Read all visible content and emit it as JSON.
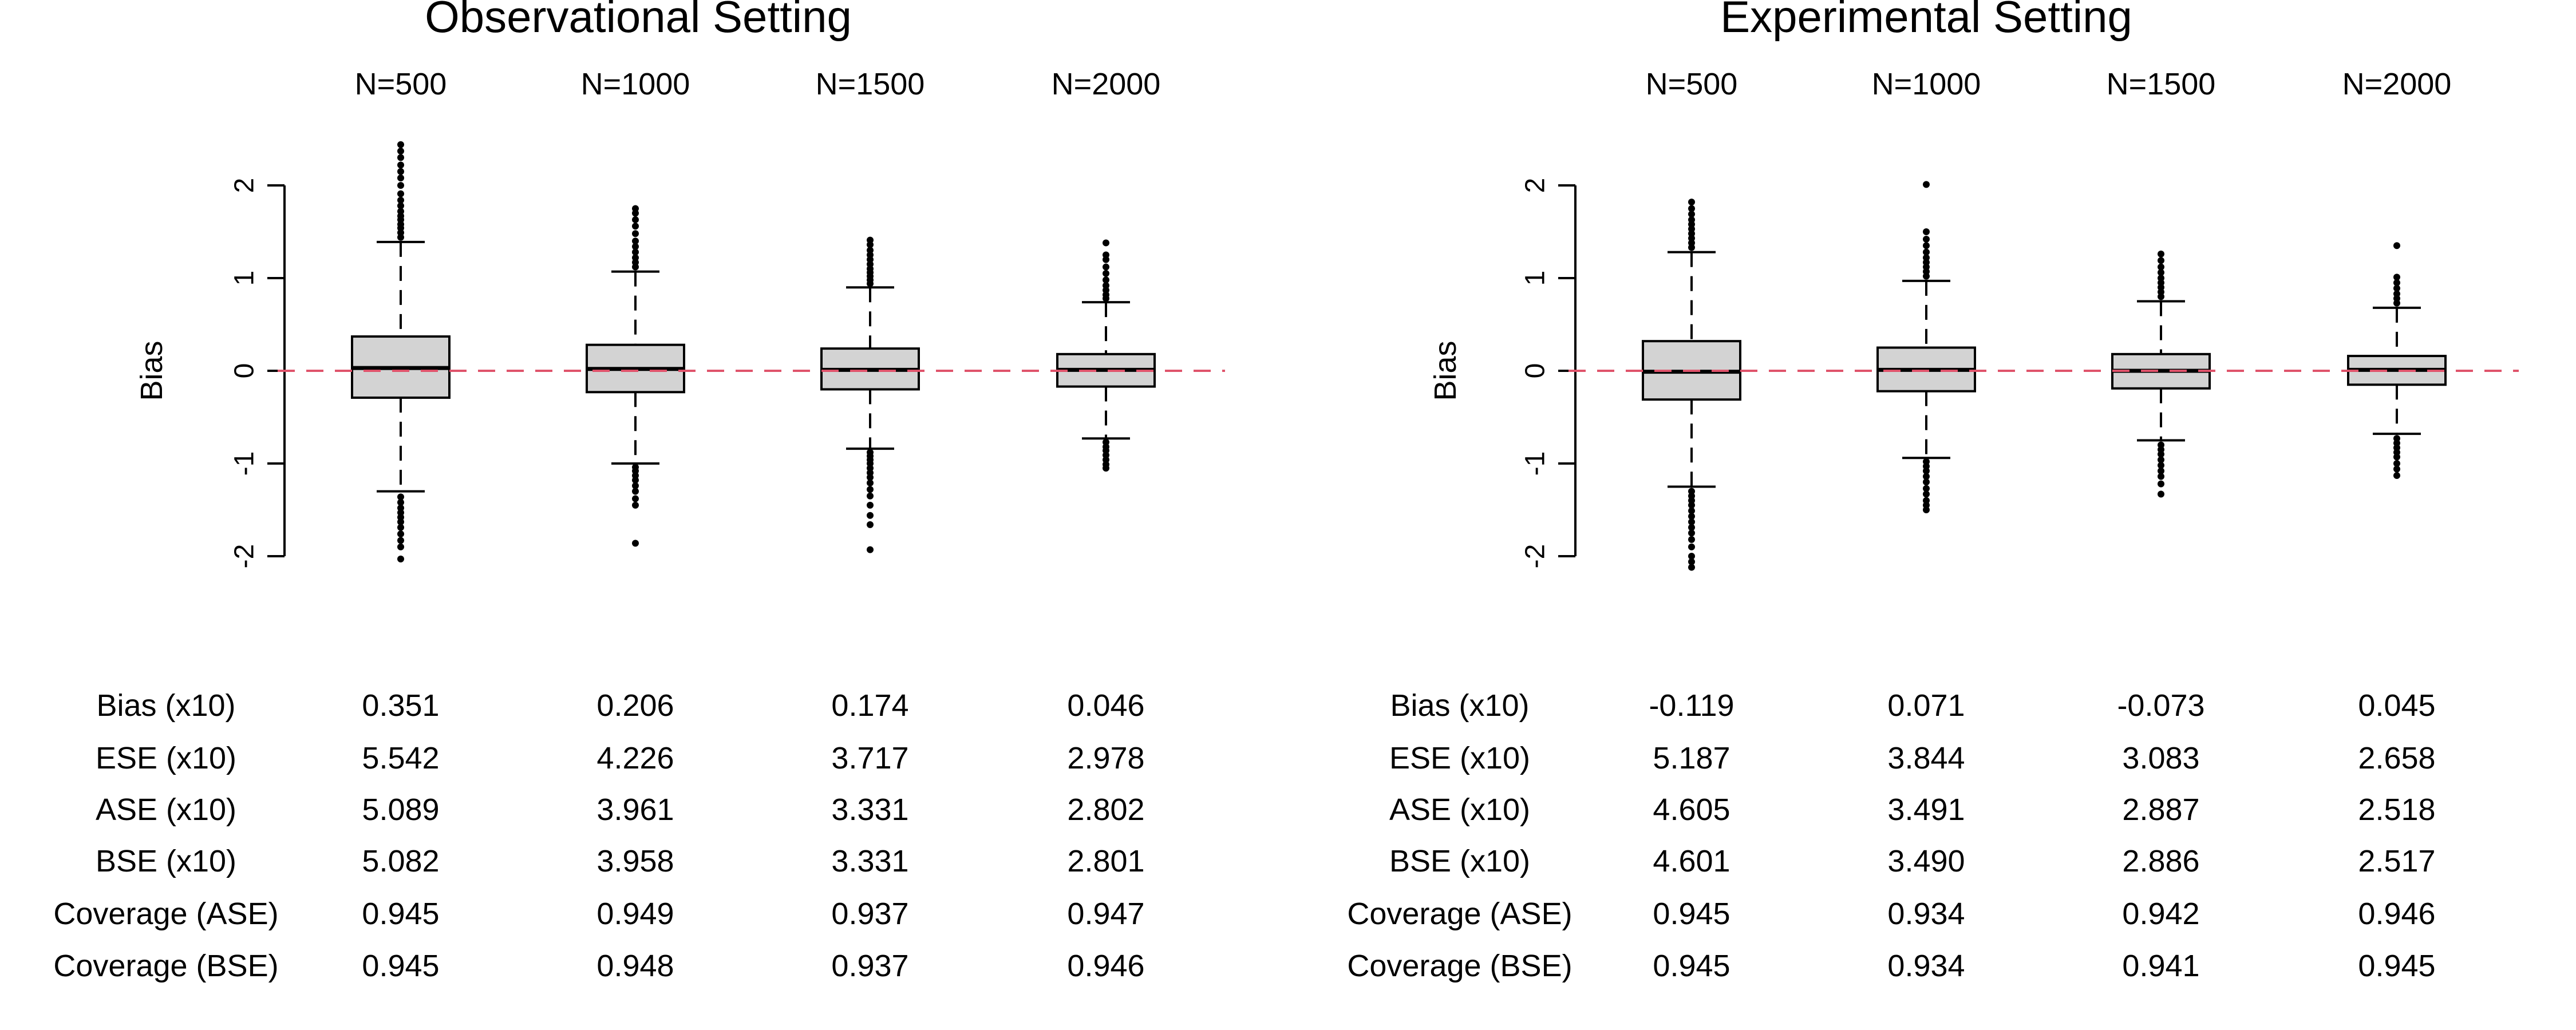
{
  "chart_data": [
    {
      "type": "boxplot",
      "title": "Observational Setting",
      "ylabel": "Bias",
      "categories": [
        "N=500",
        "N=1000",
        "N=1500",
        "N=2000"
      ],
      "ylim": [
        -2,
        2
      ],
      "yticks": [
        "2",
        "1",
        "0",
        "-1",
        "-2"
      ],
      "reference_line": 0,
      "boxes": [
        {
          "lower_whisker": -1.3,
          "q1": -0.29,
          "median": 0.03,
          "q3": 0.37,
          "upper_whisker": 1.39,
          "outliers": [
            1.44,
            1.49,
            1.54,
            1.58,
            1.63,
            1.67,
            1.72,
            1.78,
            1.84,
            1.91,
            2.0,
            2.08,
            2.15,
            2.22,
            2.3,
            2.37,
            2.44,
            -1.36,
            -1.42,
            -1.48,
            -1.53,
            -1.58,
            -1.63,
            -1.69,
            -1.76,
            -1.83,
            -1.9,
            -2.03
          ]
        },
        {
          "lower_whisker": -1.0,
          "q1": -0.23,
          "median": 0.02,
          "q3": 0.28,
          "upper_whisker": 1.07,
          "outliers": [
            1.12,
            1.17,
            1.22,
            1.28,
            1.34,
            1.4,
            1.48,
            1.56,
            1.63,
            1.7,
            1.75,
            -1.04,
            -1.08,
            -1.13,
            -1.18,
            -1.24,
            -1.3,
            -1.38,
            -1.45,
            -1.86
          ]
        },
        {
          "lower_whisker": -0.84,
          "q1": -0.2,
          "median": 0.01,
          "q3": 0.24,
          "upper_whisker": 0.9,
          "outliers": [
            0.94,
            0.98,
            1.02,
            1.06,
            1.1,
            1.15,
            1.2,
            1.25,
            1.3,
            1.36,
            1.41,
            -0.88,
            -0.92,
            -0.96,
            -1.0,
            -1.05,
            -1.1,
            -1.15,
            -1.21,
            -1.28,
            -1.35,
            -1.45,
            -1.56,
            -1.66,
            -1.93
          ]
        },
        {
          "lower_whisker": -0.73,
          "q1": -0.17,
          "median": 0.01,
          "q3": 0.18,
          "upper_whisker": 0.74,
          "outliers": [
            0.78,
            0.82,
            0.87,
            0.92,
            0.98,
            1.05,
            1.12,
            1.2,
            1.25,
            1.38,
            -0.77,
            -0.82,
            -0.86,
            -0.91,
            -0.96,
            -1.01,
            -1.05
          ]
        }
      ],
      "table": {
        "rows": [
          {
            "label": "Bias (x10)",
            "values": [
              "0.351",
              "0.206",
              "0.174",
              "0.046"
            ]
          },
          {
            "label": "ESE (x10)",
            "values": [
              "5.542",
              "4.226",
              "3.717",
              "2.978"
            ]
          },
          {
            "label": "ASE (x10)",
            "values": [
              "5.089",
              "3.961",
              "3.331",
              "2.802"
            ]
          },
          {
            "label": "BSE (x10)",
            "values": [
              "5.082",
              "3.958",
              "3.331",
              "2.801"
            ]
          },
          {
            "label": "Coverage (ASE)",
            "values": [
              "0.945",
              "0.949",
              "0.937",
              "0.947"
            ]
          },
          {
            "label": "Coverage (BSE)",
            "values": [
              "0.945",
              "0.948",
              "0.937",
              "0.946"
            ]
          }
        ]
      }
    },
    {
      "type": "boxplot",
      "title": "Experimental Setting",
      "ylabel": "Bias",
      "categories": [
        "N=500",
        "N=1000",
        "N=1500",
        "N=2000"
      ],
      "ylim": [
        -2,
        2
      ],
      "yticks": [
        "2",
        "1",
        "0",
        "-1",
        "-2"
      ],
      "reference_line": 0,
      "boxes": [
        {
          "lower_whisker": -1.25,
          "q1": -0.31,
          "median": -0.01,
          "q3": 0.32,
          "upper_whisker": 1.28,
          "outliers": [
            1.33,
            1.38,
            1.43,
            1.48,
            1.53,
            1.58,
            1.63,
            1.69,
            1.75,
            1.82,
            -1.3,
            -1.35,
            -1.4,
            -1.45,
            -1.51,
            -1.57,
            -1.63,
            -1.69,
            -1.75,
            -1.82,
            -1.9,
            -2.0,
            -2.06,
            -2.12
          ]
        },
        {
          "lower_whisker": -0.94,
          "q1": -0.22,
          "median": 0.01,
          "q3": 0.25,
          "upper_whisker": 0.97,
          "outliers": [
            1.02,
            1.07,
            1.12,
            1.17,
            1.22,
            1.28,
            1.35,
            1.42,
            1.5,
            2.01,
            -0.98,
            -1.03,
            -1.08,
            -1.14,
            -1.2,
            -1.27,
            -1.33,
            -1.4,
            -1.45,
            -1.5
          ]
        },
        {
          "lower_whisker": -0.75,
          "q1": -0.19,
          "median": 0.0,
          "q3": 0.18,
          "upper_whisker": 0.75,
          "outliers": [
            0.8,
            0.85,
            0.9,
            0.95,
            1.0,
            1.06,
            1.12,
            1.19,
            1.26,
            -0.8,
            -0.85,
            -0.9,
            -0.96,
            -1.02,
            -1.08,
            -1.14,
            -1.22,
            -1.33
          ]
        },
        {
          "lower_whisker": -0.68,
          "q1": -0.15,
          "median": 0.01,
          "q3": 0.16,
          "upper_whisker": 0.68,
          "outliers": [
            0.73,
            0.78,
            0.83,
            0.89,
            0.95,
            1.01,
            1.35,
            -0.73,
            -0.78,
            -0.83,
            -0.88,
            -0.93,
            -1.0,
            -1.06,
            -1.13
          ]
        }
      ],
      "table": {
        "rows": [
          {
            "label": "Bias (x10)",
            "values": [
              "-0.119",
              "0.071",
              "-0.073",
              "0.045"
            ]
          },
          {
            "label": "ESE (x10)",
            "values": [
              "5.187",
              "3.844",
              "3.083",
              "2.658"
            ]
          },
          {
            "label": "ASE (x10)",
            "values": [
              "4.605",
              "3.491",
              "2.887",
              "2.518"
            ]
          },
          {
            "label": "BSE (x10)",
            "values": [
              "4.601",
              "3.490",
              "2.886",
              "2.517"
            ]
          },
          {
            "label": "Coverage (ASE)",
            "values": [
              "0.945",
              "0.934",
              "0.942",
              "0.946"
            ]
          },
          {
            "label": "Coverage (BSE)",
            "values": [
              "0.945",
              "0.934",
              "0.941",
              "0.945"
            ]
          }
        ]
      }
    }
  ]
}
